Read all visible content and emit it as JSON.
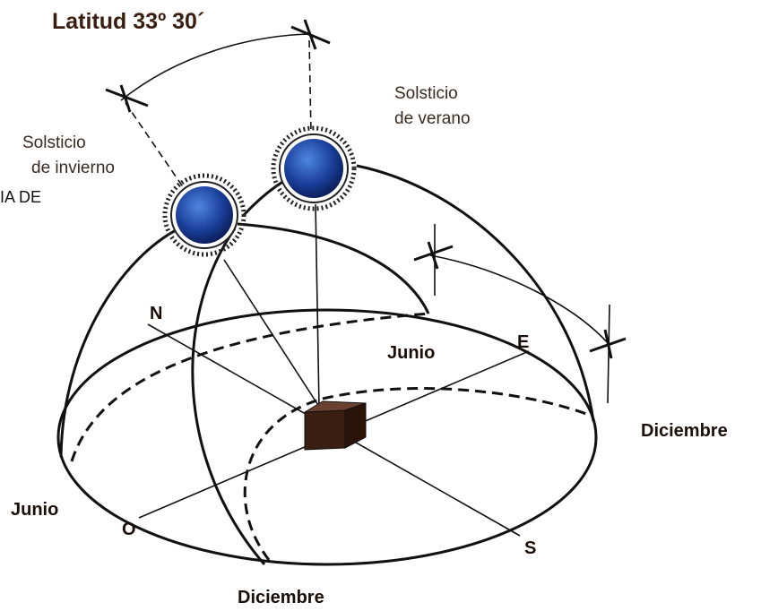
{
  "title": "Latitud 33º 30´",
  "summer_solstice": [
    "Solsticio",
    "de verano"
  ],
  "winter_solstice": [
    "Solsticio",
    "de invierno"
  ],
  "fragment": "IA DE",
  "cardinals": {
    "north": "N",
    "east": "E",
    "west": "O",
    "south": "S"
  },
  "months": {
    "june_top": "Junio",
    "june_left": "Junio",
    "december_right": "Diciembre",
    "december_bottom": "Diciembre"
  }
}
